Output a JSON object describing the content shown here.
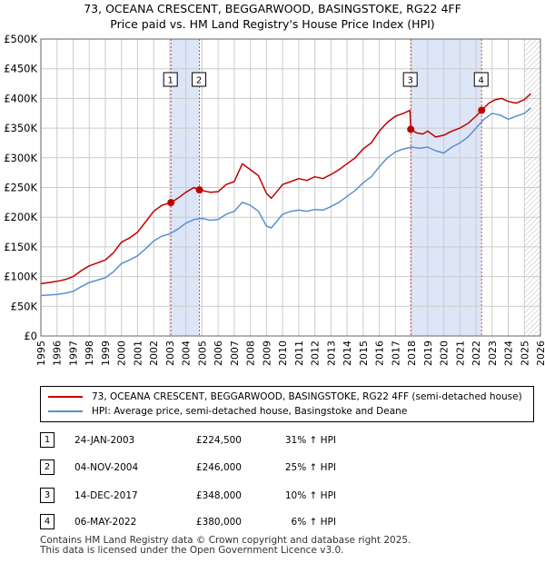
{
  "title_line1": "73, OCEANA CRESCENT, BEGGARWOOD, BASINGSTOKE, RG22 4FF",
  "title_line2": "Price paid vs. HM Land Registry's House Price Index (HPI)",
  "colors": {
    "price_line": "#c00000",
    "hpi_line": "#5b8fd0",
    "highlight": "#dde6f7",
    "grid": "#cccccc"
  },
  "chart_data": {
    "type": "line",
    "xlim": [
      1995,
      2026
    ],
    "ylim": [
      0,
      500000
    ],
    "y_ticks": [
      0,
      50000,
      100000,
      150000,
      200000,
      250000,
      300000,
      350000,
      400000,
      450000,
      500000
    ],
    "y_tick_labels": [
      "£0",
      "£50K",
      "£100K",
      "£150K",
      "£200K",
      "£250K",
      "£300K",
      "£350K",
      "£400K",
      "£450K",
      "£500K"
    ],
    "x_ticks": [
      1995,
      1996,
      1997,
      1998,
      1999,
      2000,
      2001,
      2002,
      2003,
      2004,
      2005,
      2006,
      2007,
      2008,
      2009,
      2010,
      2011,
      2012,
      2013,
      2014,
      2015,
      2016,
      2017,
      2018,
      2019,
      2020,
      2021,
      2022,
      2023,
      2024,
      2025,
      2026
    ],
    "x_tick_labels": [
      "1995",
      "1996",
      "1997",
      "1998",
      "1999",
      "2000",
      "2001",
      "2002",
      "2003",
      "2004",
      "2005",
      "2006",
      "2007",
      "2008",
      "2009",
      "2010",
      "2011",
      "2012",
      "2013",
      "2014",
      "2015",
      "2016",
      "2017",
      "2018",
      "2019",
      "2020",
      "2021",
      "2022",
      "2023",
      "2024",
      "2025",
      "2026"
    ],
    "highlight_ranges": [
      [
        2003.07,
        2004.84
      ],
      [
        2017.95,
        2022.35
      ]
    ],
    "forecast_start": 2025.0,
    "series": [
      {
        "name": "73, OCEANA CRESCENT, BEGGARWOOD, BASINGSTOKE, RG22 4FF (semi-detached house)",
        "x": [
          1995.0,
          1995.5,
          1996.0,
          1996.5,
          1997.0,
          1997.5,
          1998.0,
          1998.5,
          1999.0,
          1999.5,
          2000.0,
          2000.5,
          2001.0,
          2001.5,
          2002.0,
          2002.5,
          2003.07,
          2003.5,
          2004.0,
          2004.5,
          2004.84,
          2005.5,
          2006.0,
          2006.5,
          2007.0,
          2007.5,
          2008.0,
          2008.5,
          2009.0,
          2009.3,
          2009.7,
          2010.0,
          2010.5,
          2011.0,
          2011.5,
          2012.0,
          2012.5,
          2013.0,
          2013.5,
          2014.0,
          2014.5,
          2015.0,
          2015.5,
          2016.0,
          2016.5,
          2017.0,
          2017.5,
          2017.9,
          2017.95,
          2018.3,
          2018.7,
          2019.0,
          2019.5,
          2020.0,
          2020.5,
          2021.0,
          2021.5,
          2022.0,
          2022.35,
          2022.8,
          2023.2,
          2023.6,
          2024.0,
          2024.5,
          2025.0,
          2025.4
        ],
        "values": [
          88000,
          90000,
          92000,
          95000,
          100000,
          110000,
          118000,
          123000,
          128000,
          140000,
          158000,
          165000,
          175000,
          192000,
          210000,
          220000,
          224500,
          232000,
          242000,
          250000,
          246000,
          242000,
          243000,
          255000,
          260000,
          290000,
          280000,
          270000,
          240000,
          232000,
          245000,
          255000,
          260000,
          265000,
          262000,
          268000,
          265000,
          272000,
          280000,
          290000,
          300000,
          315000,
          325000,
          345000,
          360000,
          370000,
          375000,
          380000,
          348000,
          342000,
          340000,
          345000,
          335000,
          338000,
          345000,
          350000,
          358000,
          370000,
          380000,
          392000,
          398000,
          400000,
          395000,
          392000,
          398000,
          408000
        ]
      },
      {
        "name": "HPI: Average price, semi-detached house, Basingstoke and Deane",
        "x": [
          1995.0,
          1995.5,
          1996.0,
          1996.5,
          1997.0,
          1997.5,
          1998.0,
          1998.5,
          1999.0,
          1999.5,
          2000.0,
          2000.5,
          2001.0,
          2001.5,
          2002.0,
          2002.5,
          2003.0,
          2003.5,
          2004.0,
          2004.5,
          2005.0,
          2005.5,
          2006.0,
          2006.5,
          2007.0,
          2007.5,
          2008.0,
          2008.5,
          2009.0,
          2009.3,
          2009.7,
          2010.0,
          2010.5,
          2011.0,
          2011.5,
          2012.0,
          2012.5,
          2013.0,
          2013.5,
          2014.0,
          2014.5,
          2015.0,
          2015.5,
          2016.0,
          2016.5,
          2017.0,
          2017.5,
          2018.0,
          2018.5,
          2019.0,
          2019.5,
          2020.0,
          2020.5,
          2021.0,
          2021.5,
          2022.0,
          2022.5,
          2023.0,
          2023.5,
          2024.0,
          2024.5,
          2025.0,
          2025.4
        ],
        "values": [
          68000,
          69000,
          70000,
          72000,
          75000,
          83000,
          90000,
          94000,
          98000,
          108000,
          122000,
          128000,
          135000,
          147000,
          160000,
          168000,
          172000,
          180000,
          190000,
          196000,
          198000,
          195000,
          196000,
          205000,
          210000,
          225000,
          220000,
          210000,
          185000,
          182000,
          195000,
          205000,
          210000,
          212000,
          210000,
          213000,
          212000,
          218000,
          225000,
          235000,
          245000,
          258000,
          268000,
          285000,
          300000,
          310000,
          315000,
          318000,
          316000,
          318000,
          312000,
          308000,
          318000,
          325000,
          335000,
          350000,
          365000,
          375000,
          372000,
          365000,
          370000,
          375000,
          384000
        ]
      }
    ],
    "sales": [
      {
        "label": "1",
        "x": 2003.07,
        "value": 224500
      },
      {
        "label": "2",
        "x": 2004.84,
        "value": 246000
      },
      {
        "label": "3",
        "x": 2017.95,
        "value": 348000
      },
      {
        "label": "4",
        "x": 2022.35,
        "value": 380000
      }
    ]
  },
  "legend": {
    "series1": "73, OCEANA CRESCENT, BEGGARWOOD, BASINGSTOKE, RG22 4FF (semi-detached house)",
    "series2": "HPI: Average price, semi-detached house, Basingstoke and Deane"
  },
  "sales_table": [
    {
      "num": "1",
      "date": "24-JAN-2003",
      "price": "£224,500",
      "hpi": "31% ↑ HPI"
    },
    {
      "num": "2",
      "date": "04-NOV-2004",
      "price": "£246,000",
      "hpi": "25% ↑ HPI"
    },
    {
      "num": "3",
      "date": "14-DEC-2017",
      "price": "£348,000",
      "hpi": "10% ↑ HPI"
    },
    {
      "num": "4",
      "date": "06-MAY-2022",
      "price": "£380,000",
      "hpi": "6% ↑ HPI"
    }
  ],
  "footer_line1": "Contains HM Land Registry data © Crown copyright and database right 2025.",
  "footer_line2": "This data is licensed under the Open Government Licence v3.0."
}
